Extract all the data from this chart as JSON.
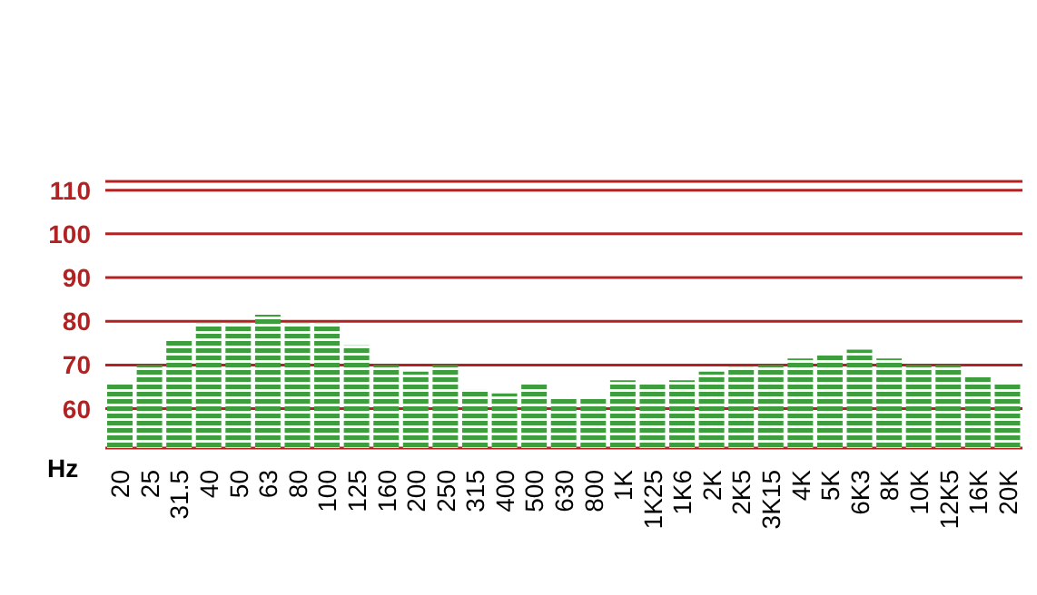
{
  "chart_data": {
    "type": "bar",
    "xlabel": "Hz",
    "categories": [
      "20",
      "25",
      "31.5",
      "40",
      "50",
      "63",
      "80",
      "100",
      "125",
      "160",
      "200",
      "250",
      "315",
      "400",
      "500",
      "630",
      "800",
      "1K",
      "1K25",
      "1K6",
      "2K",
      "2K5",
      "3K15",
      "4K",
      "5K",
      "6K3",
      "8K",
      "10K",
      "12K5",
      "16K",
      "20K"
    ],
    "values": [
      65.5,
      70,
      75.5,
      79.5,
      79.5,
      81.5,
      79.5,
      79.5,
      74.5,
      70,
      68.5,
      70,
      64.5,
      63.5,
      65.5,
      62.5,
      62.5,
      66.5,
      65.5,
      66.5,
      68.5,
      69.5,
      70,
      71.5,
      72.5,
      73.5,
      71.5,
      70,
      70,
      67.5,
      65.5
    ],
    "color": "#3e9e3e",
    "ylim": [
      51,
      112
    ],
    "yticks": [
      60,
      70,
      80,
      90,
      100,
      110
    ],
    "grid": "y",
    "legend": false
  }
}
